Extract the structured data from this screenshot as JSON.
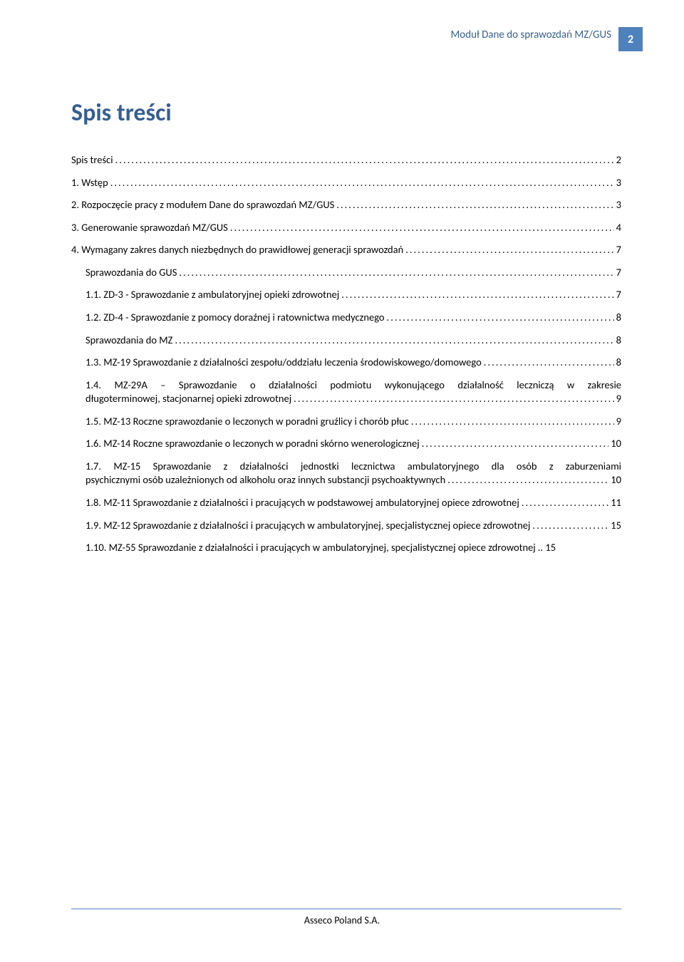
{
  "colors": {
    "heading_blue": "#365f91",
    "badge_blue": "#4f81bd",
    "text_black": "#000000",
    "background": "#ffffff"
  },
  "typography": {
    "body_font": "Calibri",
    "body_size_pt": 11,
    "heading_size_pt": 26,
    "heading_weight": "bold"
  },
  "header": {
    "running_title": "Moduł Dane do sprawozdań MZ/GUS",
    "page_number": "2"
  },
  "title": "Spis treści",
  "toc": [
    {
      "indent": 0,
      "label": "Spis treści",
      "page": "2"
    },
    {
      "indent": 0,
      "label": "1.  Wstęp",
      "page": "3"
    },
    {
      "indent": 0,
      "label": "2.  Rozpoczęcie pracy z modułem Dane do sprawozdań MZ/GUS",
      "page": "3"
    },
    {
      "indent": 0,
      "label": "3.  Generowanie sprawozdań MZ/GUS",
      "page": "4"
    },
    {
      "indent": 0,
      "label": "4.  Wymagany zakres danych niezbędnych do prawidłowej generacji sprawozdań",
      "page": "7"
    },
    {
      "indent": 1,
      "label": "Sprawozdania do GUS",
      "page": "7"
    },
    {
      "indent": 1,
      "label": "1.1.  ZD-3 - Sprawozdanie z ambulatoryjnej opieki zdrowotnej",
      "page": "7"
    },
    {
      "indent": 1,
      "label": "1.2.  ZD-4 - Sprawozdanie z pomocy doraźnej i ratownictwa medycznego",
      "page": "8"
    },
    {
      "indent": 1,
      "label": "Sprawozdania do MZ",
      "page": "8"
    },
    {
      "indent": 1,
      "label": "1.3.  MZ-19 Sprawozdanie z działalności zespołu/oddziału leczenia środowiskowego/domowego",
      "page": "8"
    },
    {
      "indent": 1,
      "multiline": true,
      "pre": "1.4.   MZ-29A  –  Sprawozdanie  o  działalności  podmiotu  wykonującego  działalność  leczniczą  w  zakresie",
      "last": "długoterminowej, stacjonarnej opieki zdrowotnej",
      "page": "9"
    },
    {
      "indent": 1,
      "label": "1.5.  MZ-13 Roczne sprawozdanie o leczonych w poradni gruźlicy i chorób płuc ",
      "page": "9"
    },
    {
      "indent": 1,
      "label": "1.6.  MZ-14 Roczne sprawozdanie o leczonych w poradni skórno wenerologicznej",
      "page": "10"
    },
    {
      "indent": 1,
      "multiline": true,
      "pre": "1.7.    MZ-15  Sprawozdanie  z  działalności  jednostki  lecznictwa  ambulatoryjnego  dla  osób  z  zaburzeniami",
      "last": "psychicznymi osób uzależnionych od alkoholu oraz innych substancji psychoaktywnych",
      "page": "10"
    },
    {
      "indent": 1,
      "label": "1.8.  MZ-11 Sprawozdanie z działalności i pracujących w podstawowej ambulatoryjnej opiece zdrowotnej ",
      "page": "11"
    },
    {
      "indent": 1,
      "label": "1.9.  MZ-12 Sprawozdanie z działalności i pracujących w ambulatoryjnej, specjalistycznej opiece zdrowotnej",
      "page": "15"
    },
    {
      "indent": 1,
      "label": "1.10.  MZ-55 Sprawozdanie z działalności i pracujących w ambulatoryjnej, specjalistycznej opiece zdrowotnej",
      "page": "15",
      "tight": true
    }
  ],
  "footer": "Asseco Poland S.A."
}
